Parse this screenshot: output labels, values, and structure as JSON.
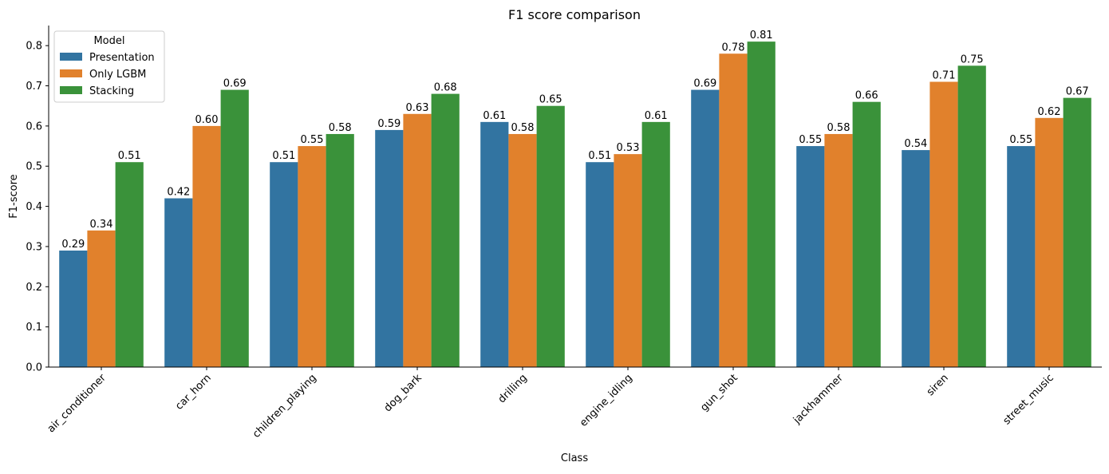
{
  "chart_data": {
    "type": "bar",
    "title": "F1 score comparison",
    "xlabel": "Class",
    "ylabel": "F1-score",
    "ylim": [
      0,
      0.85
    ],
    "yticks": [
      "0.0",
      "0.1",
      "0.2",
      "0.3",
      "0.4",
      "0.5",
      "0.6",
      "0.7",
      "0.8"
    ],
    "grid": false,
    "legend": {
      "title": "Model",
      "placement": "top-left"
    },
    "categories": [
      "air_conditioner",
      "car_horn",
      "children_playing",
      "dog_bark",
      "drilling",
      "engine_idling",
      "gun_shot",
      "jackhammer",
      "siren",
      "street_music"
    ],
    "series": [
      {
        "name": "Presentation",
        "color": "#3274a1",
        "values": [
          0.29,
          0.42,
          0.51,
          0.59,
          0.61,
          0.51,
          0.69,
          0.55,
          0.54,
          0.55
        ],
        "labels": [
          "0.29",
          "0.42",
          "0.51",
          "0.59",
          "0.61",
          "0.51",
          "0.69",
          "0.55",
          "0.54",
          "0.55"
        ]
      },
      {
        "name": "Only LGBM",
        "color": "#e1812c",
        "values": [
          0.34,
          0.6,
          0.55,
          0.63,
          0.58,
          0.53,
          0.78,
          0.58,
          0.71,
          0.62
        ],
        "labels": [
          "0.34",
          "0.60",
          "0.55",
          "0.63",
          "0.58",
          "0.53",
          "0.78",
          "0.58",
          "0.71",
          "0.62"
        ]
      },
      {
        "name": "Stacking",
        "color": "#3a923a",
        "values": [
          0.51,
          0.69,
          0.58,
          0.68,
          0.65,
          0.61,
          0.81,
          0.66,
          0.75,
          0.67
        ],
        "labels": [
          "0.51",
          "0.69",
          "0.58",
          "0.68",
          "0.65",
          "0.61",
          "0.81",
          "0.66",
          "0.75",
          "0.67"
        ]
      }
    ]
  }
}
